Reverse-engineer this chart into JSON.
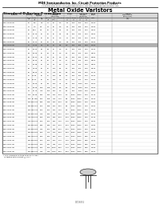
{
  "company": "MDE Semiconductor, Inc. Circuit Protection Products",
  "address": "70-060 Dillon Tampico, Unit 270, La Quinta, CA 92253 Tel: 760-836-0031 Fax: 760-836-5",
  "address2": "1-800-831-4881 Email: sales@mdesemiconductor.com Web: www.mdesemiconductor.com",
  "main_title": "Metal Oxide Varistors",
  "subtitle": "Standard D Series 7 mm Disc",
  "highlight_row": 6,
  "col_headers_row1": [
    "Part",
    "Varistor",
    "Maximum",
    "Max Clamping",
    "Energy",
    "Max Peak",
    "Rated",
    "Typical"
  ],
  "col_headers_row2": [
    "Number",
    "Voltage",
    "Allowable Voltage",
    "Voltage (8/20 μS)",
    "",
    "Current (8/20 μS)",
    "Power",
    "Capacitance (Reference)"
  ],
  "col_headers_row3": [
    "",
    "Vnom (V)",
    "ACrms (V)",
    "DC (V)",
    "8/20μs (V)",
    "Ib (mA)",
    "Tolerance",
    "1 time (A)",
    "2 times (A)",
    "Watts",
    "Tabs (pF)"
  ],
  "rows": [
    [
      "MDE-7D100M",
      "10",
      "6-8",
      "1.5",
      "11",
      "20",
      "2.0",
      "1.2",
      "100",
      "450",
      "0.10",
      "2.200"
    ],
    [
      "MDE-7D110M",
      "11",
      "7-9",
      "2.5",
      "14",
      "22",
      "2.0",
      "1.2",
      "100",
      "450",
      "0.10",
      "2.000"
    ],
    [
      "MDE-7D120M",
      "12",
      "8-10",
      "2.5",
      "15",
      "25",
      "2.5",
      "1.4",
      "200",
      "450",
      "0.10",
      "1.800"
    ],
    [
      "MDE-7D150M",
      "15",
      "10-12",
      "25",
      "20",
      "30",
      "2.5",
      "1.5",
      "500",
      "450",
      "0.10",
      "1.500"
    ],
    [
      "MDE-7D180M",
      "18",
      "11-15",
      "25",
      "23",
      "35",
      "3.0",
      "1.7",
      "500",
      "450",
      "0.10",
      "1.300"
    ],
    [
      "MDE-7D200M",
      "20",
      "14-17",
      "25",
      "26",
      "40",
      "3.0",
      "1.8",
      "500",
      "450",
      "0.10",
      "1.200"
    ],
    [
      "MDE-7D270M",
      "27",
      "17-22",
      "34",
      "35",
      "53",
      "3.5",
      "2.0",
      "500",
      "450",
      "0.25",
      "1.000"
    ],
    [
      "MDE-7D300M",
      "30",
      "20-24",
      "38",
      "39",
      "60",
      "4.0",
      "2.1",
      "500",
      "450",
      "0.25",
      "0.900"
    ],
    [
      "MDE-7D330M",
      "33",
      "22-26",
      "42",
      "43",
      "65",
      "4.0",
      "2.2",
      "500",
      "450",
      "0.25",
      "0.820"
    ],
    [
      "MDE-7D390M",
      "39",
      "26-31",
      "50",
      "51",
      "75",
      "4.0",
      "2.5",
      "500",
      "450",
      "0.25",
      "0.680"
    ],
    [
      "MDE-7D430M",
      "43",
      "28-34",
      "56",
      "56",
      "86",
      "4.0",
      "2.7",
      "500",
      "450",
      "0.25",
      "0.620"
    ],
    [
      "MDE-7D470M",
      "47",
      "30-38",
      "60",
      "61",
      "94",
      "5.0",
      "3.0",
      "500",
      "450",
      "0.25",
      "0.560"
    ],
    [
      "MDE-7D510M",
      "51",
      "34-40",
      "65",
      "67",
      "102",
      "5.5",
      "3.2",
      "500",
      "450",
      "0.25",
      "0.510"
    ],
    [
      "MDE-7D560M",
      "56",
      "38-44",
      "72",
      "73",
      "113",
      "6.0",
      "3.5",
      "500",
      "450",
      "0.25",
      "0.470"
    ],
    [
      "MDE-7D620M",
      "62",
      "41-49",
      "80",
      "82",
      "124",
      "6.5",
      "3.9",
      "500",
      "450",
      "0.25",
      "0.420"
    ],
    [
      "MDE-7D680M",
      "68",
      "45-54",
      "87",
      "90",
      "136",
      "7.0",
      "4.3",
      "500",
      "450",
      "0.25",
      "0.390"
    ],
    [
      "MDE-7D750M",
      "75",
      "50-60",
      "96",
      "99",
      "150",
      "7.5",
      "4.5",
      "500",
      "1000",
      "0.25",
      "0.350"
    ],
    [
      "MDE-7D820M",
      "82",
      "55-65",
      "105",
      "108",
      "164",
      "8.0",
      "5.0",
      "500",
      "1000",
      "0.25",
      "0.320"
    ],
    [
      "MDE-7D910M",
      "91",
      "60-72",
      "116",
      "120",
      "182",
      "9.0",
      "5.5",
      "500",
      "1000",
      "0.25",
      "0.290"
    ],
    [
      "MDE-7D101M",
      "100",
      "75-95",
      "130",
      "132",
      "200",
      "10.0",
      "6.0",
      "2500",
      "4000",
      "0.40",
      "0.270"
    ],
    [
      "MDE-7D121M",
      "120",
      "85-108",
      "150",
      "158",
      "240",
      "11.0",
      "6.5",
      "2500",
      "4000",
      "0.40",
      "0.220"
    ],
    [
      "MDE-7D151M",
      "150",
      "100-135",
      "180",
      "198",
      "300",
      "12.0",
      "8.0",
      "2500",
      "4000",
      "0.40",
      "0.180"
    ],
    [
      "MDE-7D181M",
      "180",
      "130-154",
      "220",
      "238",
      "360",
      "13.0",
      "8.5",
      "2500",
      "4000",
      "0.40",
      "0.150"
    ],
    [
      "MDE-7D201M",
      "200",
      "140-176",
      "250",
      "264",
      "400",
      "14.0",
      "9.5",
      "2500",
      "4000",
      "0.40",
      "0.130"
    ],
    [
      "MDE-7D221M",
      "220",
      "150-186",
      "275",
      "290",
      "440",
      "15.0",
      "10.0",
      "2500",
      "4000",
      "0.45",
      "0.120"
    ],
    [
      "MDE-7D241M",
      "240",
      "175-215",
      "300",
      "320",
      "480",
      "20.0",
      "10.0",
      "2500",
      "4000",
      "0.45",
      "0.110"
    ],
    [
      "MDE-7D271M",
      "270",
      "175-215",
      "350",
      "354",
      "540",
      "21.0",
      "11.0",
      "2500",
      "4000",
      "0.45",
      "0.100"
    ],
    [
      "MDE-7D301M",
      "300",
      "200-250",
      "385",
      "396",
      "600",
      "22.0",
      "12.0",
      "2500",
      "4000",
      "0.45",
      "0.090"
    ],
    [
      "MDE-7D321M",
      "320",
      "225-265",
      "410",
      "422",
      "640",
      "22.0",
      "12.0",
      "2500",
      "4000",
      "0.45",
      "0.080"
    ],
    [
      "MDE-7D361M",
      "360",
      "250-290",
      "460",
      "474",
      "720",
      "23.0",
      "13.0",
      "2500",
      "4000",
      "0.45",
      "0.075"
    ],
    [
      "MDE-7D391M",
      "390",
      "275-315",
      "500",
      "512",
      "780",
      "25.0",
      "14.0",
      "2500",
      "4000",
      "0.50",
      "0.070"
    ],
    [
      "MDE-7D431M",
      "430",
      "300-360",
      "550",
      "564",
      "860",
      "27.0",
      "14.5",
      "2500",
      "4000",
      "0.50",
      "0.065"
    ],
    [
      "MDE-7D471M",
      "470",
      "320-395",
      "600",
      "617",
      "940",
      "27.0",
      "16.0",
      "2500",
      "4000",
      "0.50",
      "0.060"
    ],
    [
      "MDE-7D511M",
      "510",
      "350-430",
      "650",
      "670",
      "1020",
      "28.0",
      "17.0",
      "2500",
      "4000",
      "0.50",
      "0.055"
    ],
    [
      "MDE-7D561M",
      "560",
      "385-470",
      "715",
      "745",
      "1120",
      "29.0",
      "18.0",
      "2500",
      "4000",
      "0.50",
      "0.050"
    ]
  ],
  "footnote": "* The clamping voltage from 5V to 95V\n  is tested with current @ 0.1A.",
  "bg_color": "#ffffff",
  "highlight_color": "#c0c0c0",
  "table_line_color": "#888888",
  "header_bg": "#d0d0d0"
}
